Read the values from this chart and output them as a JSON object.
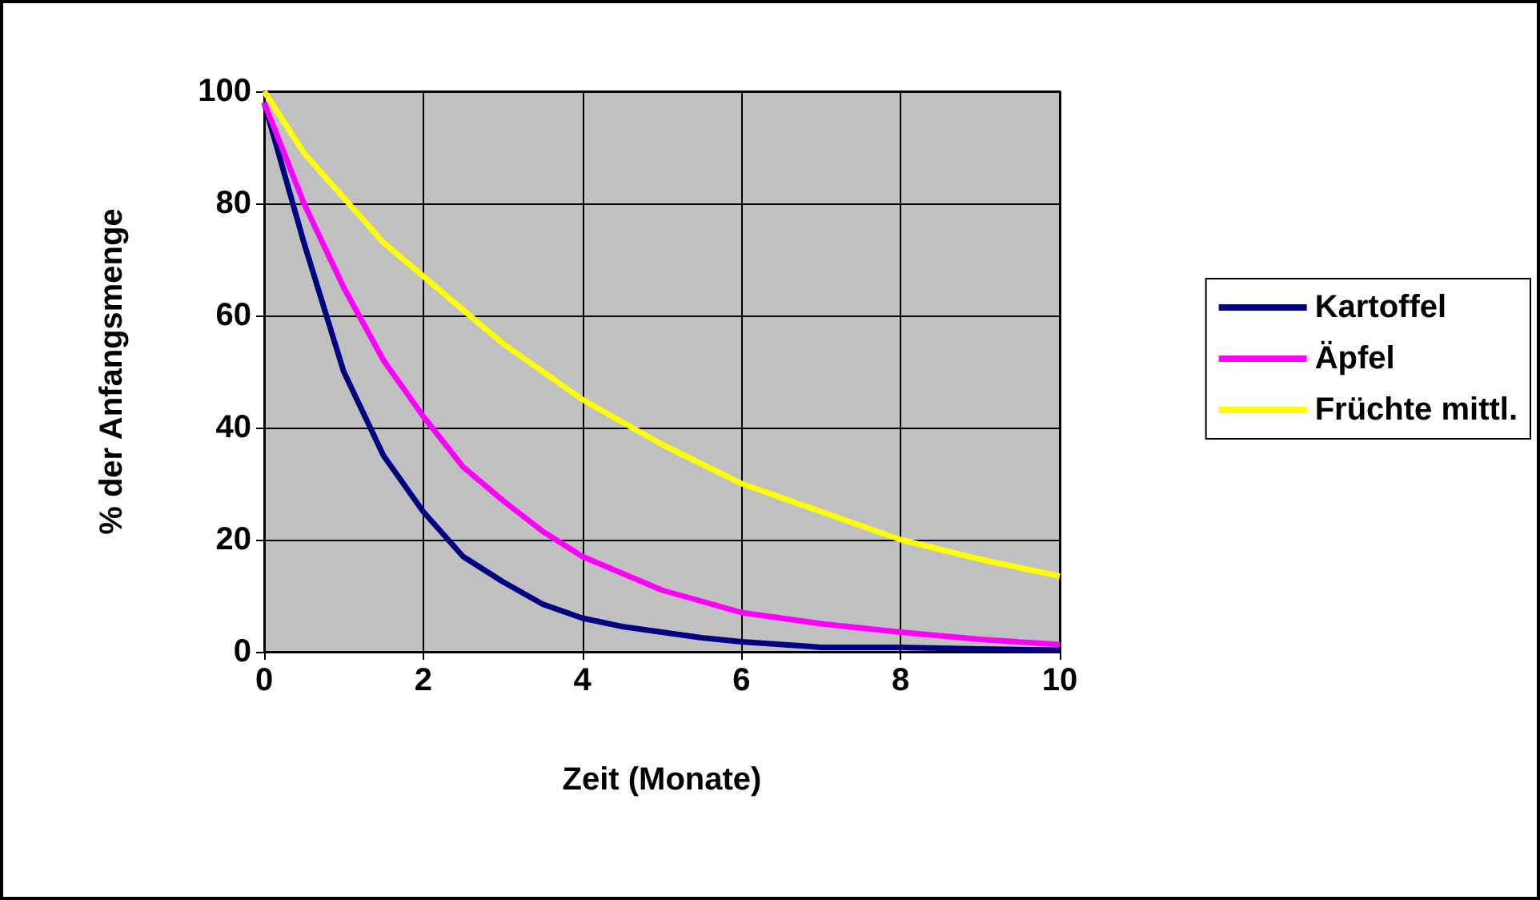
{
  "chart_data": {
    "type": "line",
    "xlabel": "Zeit (Monate)",
    "ylabel": "% der Anfangsmenge",
    "x": [
      0,
      0.5,
      1,
      1.5,
      2,
      2.5,
      3,
      3.5,
      4,
      4.5,
      5,
      5.5,
      6,
      7,
      8,
      9,
      10
    ],
    "series": [
      {
        "name": "Kartoffel",
        "color": "#000080",
        "values": [
          98,
          73,
          50,
          35,
          25,
          17,
          12.5,
          8.5,
          6,
          4.5,
          3.5,
          2.5,
          1.8,
          0.8,
          0.8,
          0.5,
          0.3
        ]
      },
      {
        "name": "Äpfel",
        "color": "#ff00ff",
        "values": [
          98,
          80,
          65,
          52,
          42,
          33,
          27,
          21.5,
          17,
          14,
          11,
          9,
          7,
          5,
          3.5,
          2.2,
          1.3
        ]
      },
      {
        "name": "Früchte mittl.",
        "color": "#ffff00",
        "values": [
          100,
          89,
          81,
          73,
          67,
          61,
          55,
          50,
          45,
          41,
          37,
          33.5,
          30,
          25,
          20,
          16.5,
          13.5
        ]
      }
    ],
    "xlim": [
      0,
      10
    ],
    "xticks": [
      0,
      2,
      4,
      6,
      8,
      10
    ],
    "ylim": [
      0,
      100
    ],
    "yticks": [
      0,
      20,
      40,
      60,
      80,
      100
    ],
    "grid": true,
    "legend": "right",
    "marker": "none",
    "line_style": "solid"
  }
}
